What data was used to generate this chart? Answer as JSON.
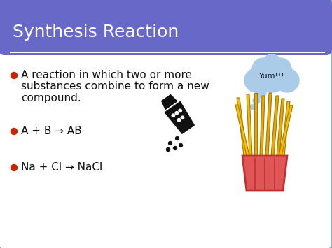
{
  "title": "Synthesis Reaction",
  "title_bg_color": "#6868c8",
  "title_text_color": "#ffffff",
  "body_bg_color": "#ffffff",
  "border_color": "#88b8b8",
  "bullet_color": "#cc2200",
  "text_color": "#111111",
  "bullet1_line1": "A reaction in which two or more",
  "bullet1_line2": "substances combine to form a new",
  "bullet1_line3": "compound.",
  "bullet2": "A + B → AB",
  "bullet3": "Na + Cl → NaCl",
  "yum_text": "Yum!!!",
  "yum_bubble_color": "#aacce8",
  "font_size_title": 18,
  "font_size_body": 11,
  "slide_bg_color": "#d8d8d8",
  "shaker_color": "#111111",
  "fry_yellow": "#f5c000",
  "fry_yellow2": "#e8a800",
  "fry_container": "#e05555",
  "fry_container_dark": "#c03030"
}
